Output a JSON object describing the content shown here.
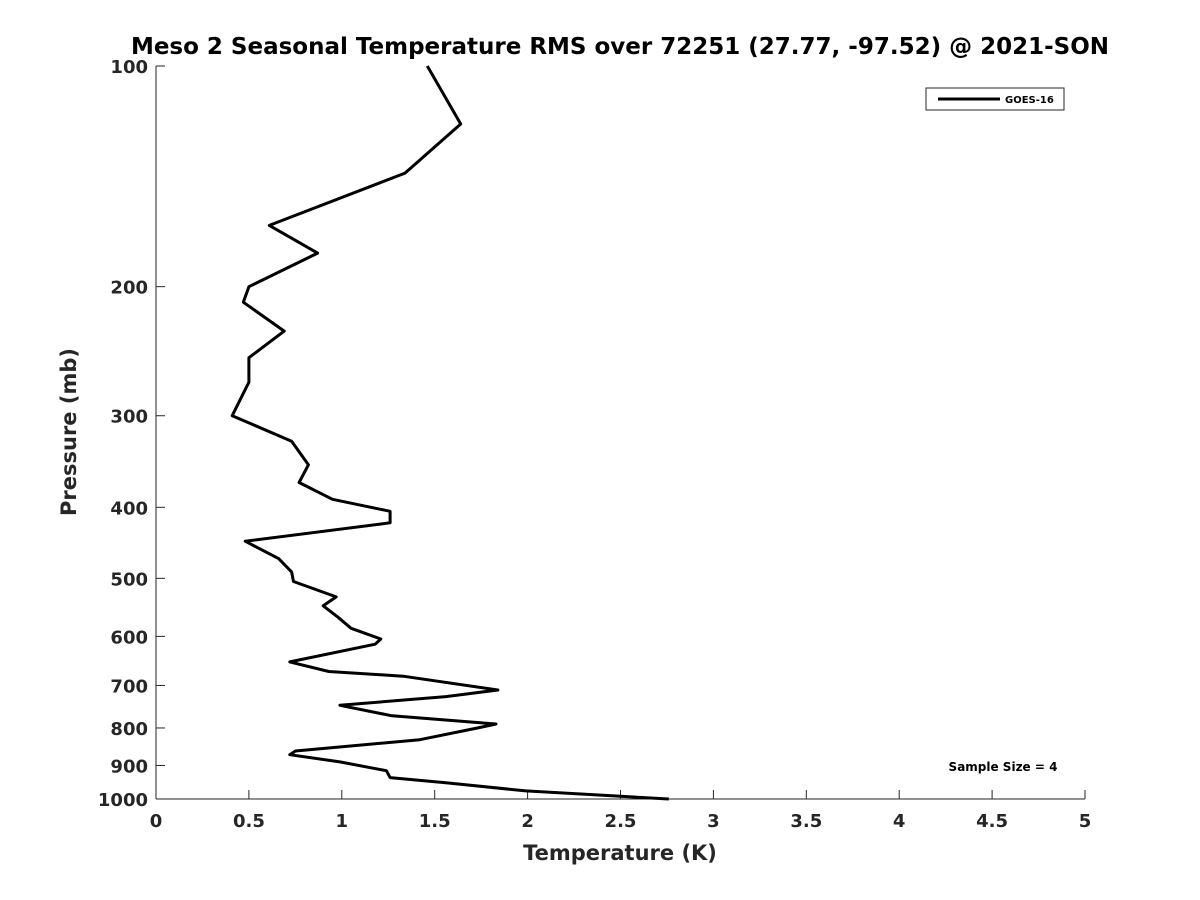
{
  "chart_data": {
    "type": "line",
    "title": "Meso 2 Seasonal Temperature RMS over 72251 (27.77, -97.52) @ 2021-SON",
    "xlabel": "Temperature (K)",
    "ylabel": "Pressure (mb)",
    "xlim": [
      0,
      5
    ],
    "ylim": [
      100,
      1000
    ],
    "y_scale": "log",
    "y_reversed": true,
    "x_ticks": [
      0,
      0.5,
      1,
      1.5,
      2,
      2.5,
      3,
      3.5,
      4,
      4.5,
      5
    ],
    "x_tick_labels": [
      "0",
      "0.5",
      "1",
      "1.5",
      "2",
      "2.5",
      "3",
      "3.5",
      "4",
      "4.5",
      "5"
    ],
    "y_ticks": [
      100,
      200,
      300,
      400,
      500,
      600,
      700,
      800,
      900,
      1000
    ],
    "y_tick_labels": [
      "100",
      "200",
      "300",
      "400",
      "500",
      "600",
      "700",
      "800",
      "900",
      "1000"
    ],
    "grid": false,
    "legend_position": "top-right",
    "series": [
      {
        "name": "GOES-16",
        "color": "#000000",
        "x": [
          1.46,
          1.64,
          1.34,
          0.61,
          0.87,
          0.5,
          0.47,
          0.69,
          0.5,
          0.5,
          0.41,
          0.73,
          0.82,
          0.77,
          0.95,
          1.26,
          1.26,
          0.48,
          0.66,
          0.73,
          0.74,
          0.97,
          0.9,
          0.98,
          1.05,
          1.21,
          1.18,
          0.72,
          0.93,
          1.33,
          1.84,
          1.56,
          0.99,
          1.27,
          1.83,
          1.73,
          1.42,
          0.75,
          0.72,
          0.99,
          1.24,
          1.26,
          1.56,
          1.99,
          2.76
        ],
        "y": [
          100,
          120,
          140,
          165,
          180,
          200,
          210,
          230,
          250,
          270,
          300,
          325,
          350,
          370,
          390,
          405,
          420,
          445,
          470,
          490,
          505,
          530,
          545,
          565,
          585,
          605,
          615,
          650,
          670,
          680,
          710,
          725,
          745,
          770,
          790,
          800,
          830,
          860,
          870,
          890,
          915,
          935,
          950,
          975,
          1000
        ]
      }
    ],
    "annotations": [
      "Sample Size = 4"
    ]
  },
  "colors": {
    "line": "#000000",
    "axis": "#262626",
    "background": "#ffffff"
  }
}
